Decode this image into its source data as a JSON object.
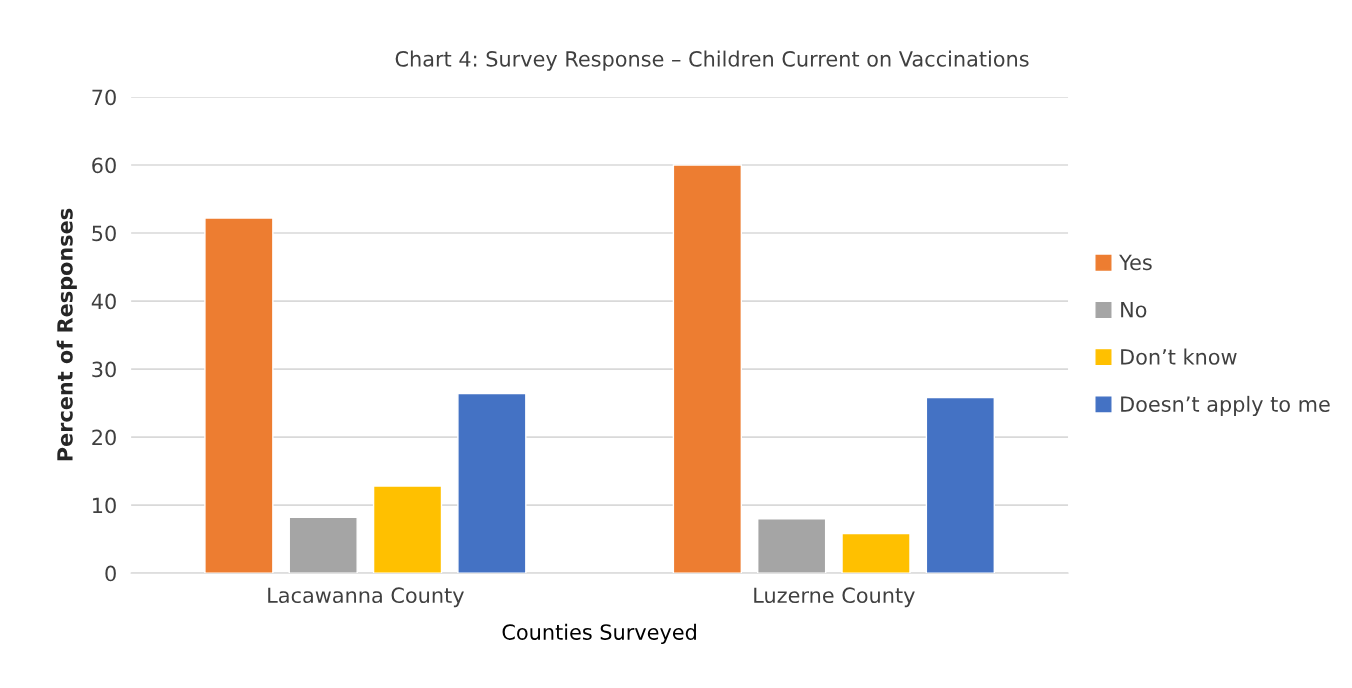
{
  "chart_data": {
    "type": "bar",
    "title": "Chart 4: Survey Response – Children Current on Vaccinations",
    "xlabel": "Counties Surveyed",
    "ylabel": "Percent of Responses",
    "categories": [
      "Lacawanna County",
      "Luzerne County"
    ],
    "series": [
      {
        "name": "Yes",
        "color": "#ed7d31",
        "values": [
          52.2,
          60.0
        ]
      },
      {
        "name": "No",
        "color": "#a5a5a5",
        "values": [
          8.2,
          8.0
        ]
      },
      {
        "name": "Don’t know",
        "color": "#ffc000",
        "values": [
          12.8,
          5.8
        ]
      },
      {
        "name": "Doesn’t apply to me",
        "color": "#4472c4",
        "values": [
          26.4,
          25.8
        ]
      }
    ],
    "ylim": [
      0,
      70
    ],
    "yticks": [
      0,
      10,
      20,
      30,
      40,
      50,
      60,
      70
    ],
    "grid": "y",
    "legend": "right"
  }
}
